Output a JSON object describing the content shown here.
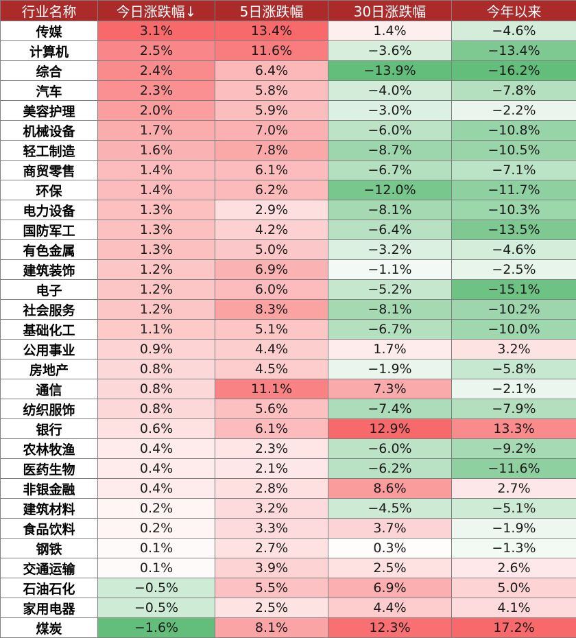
{
  "colors": {
    "header_bg": "#ab2b2b",
    "header_text": "#ffffff",
    "positive": "#f8696b",
    "negative": "#63be7b",
    "neutral": "#ffffff"
  },
  "chart_data": {
    "type": "table",
    "columns": [
      "行业名称",
      "今日涨跌幅↓",
      "5日涨跌幅",
      "30日涨跌幅",
      "今年以来"
    ],
    "rows": [
      [
        "传媒",
        "3.1%",
        "13.4%",
        "1.4%",
        "−4.6%"
      ],
      [
        "计算机",
        "2.5%",
        "11.6%",
        "−3.6%",
        "−13.4%"
      ],
      [
        "综合",
        "2.4%",
        "6.4%",
        "−13.9%",
        "−16.2%"
      ],
      [
        "汽车",
        "2.3%",
        "5.8%",
        "−4.0%",
        "−7.8%"
      ],
      [
        "美容护理",
        "2.0%",
        "5.9%",
        "−3.0%",
        "−2.2%"
      ],
      [
        "机械设备",
        "1.7%",
        "7.0%",
        "−6.0%",
        "−10.8%"
      ],
      [
        "轻工制造",
        "1.6%",
        "7.8%",
        "−8.7%",
        "−10.5%"
      ],
      [
        "商贸零售",
        "1.4%",
        "6.1%",
        "−6.7%",
        "−7.1%"
      ],
      [
        "环保",
        "1.4%",
        "6.2%",
        "−12.0%",
        "−11.7%"
      ],
      [
        "电力设备",
        "1.3%",
        "2.9%",
        "−8.1%",
        "−10.3%"
      ],
      [
        "国防军工",
        "1.3%",
        "4.2%",
        "−6.4%",
        "−13.5%"
      ],
      [
        "有色金属",
        "1.3%",
        "5.0%",
        "−3.2%",
        "−4.6%"
      ],
      [
        "建筑装饰",
        "1.2%",
        "6.9%",
        "−1.1%",
        "−2.5%"
      ],
      [
        "电子",
        "1.2%",
        "6.0%",
        "−5.2%",
        "−15.1%"
      ],
      [
        "社会服务",
        "1.2%",
        "8.3%",
        "−8.1%",
        "−10.2%"
      ],
      [
        "基础化工",
        "1.1%",
        "5.1%",
        "−6.7%",
        "−10.0%"
      ],
      [
        "公用事业",
        "0.9%",
        "4.4%",
        "1.7%",
        "3.2%"
      ],
      [
        "房地产",
        "0.8%",
        "4.5%",
        "−1.9%",
        "−5.8%"
      ],
      [
        "通信",
        "0.8%",
        "11.1%",
        "7.3%",
        "−2.1%"
      ],
      [
        "纺织服饰",
        "0.8%",
        "5.6%",
        "−7.4%",
        "−7.9%"
      ],
      [
        "银行",
        "0.6%",
        "6.1%",
        "12.9%",
        "13.3%"
      ],
      [
        "农林牧渔",
        "0.4%",
        "2.3%",
        "−6.0%",
        "−9.2%"
      ],
      [
        "医药生物",
        "0.4%",
        "2.1%",
        "−6.2%",
        "−11.6%"
      ],
      [
        "非银金融",
        "0.4%",
        "2.8%",
        "8.6%",
        "2.7%"
      ],
      [
        "建筑材料",
        "0.2%",
        "3.2%",
        "−4.5%",
        "−5.1%"
      ],
      [
        "食品饮料",
        "0.2%",
        "3.3%",
        "3.7%",
        "−1.9%"
      ],
      [
        "钢铁",
        "0.1%",
        "2.7%",
        "0.3%",
        "−1.3%"
      ],
      [
        "交通运输",
        "0.1%",
        "3.9%",
        "2.5%",
        "2.6%"
      ],
      [
        "石油石化",
        "−0.5%",
        "5.5%",
        "6.9%",
        "5.0%"
      ],
      [
        "家用电器",
        "−0.5%",
        "2.5%",
        "4.4%",
        "4.1%"
      ],
      [
        "煤炭",
        "−1.6%",
        "8.1%",
        "12.3%",
        "17.2%"
      ]
    ]
  }
}
